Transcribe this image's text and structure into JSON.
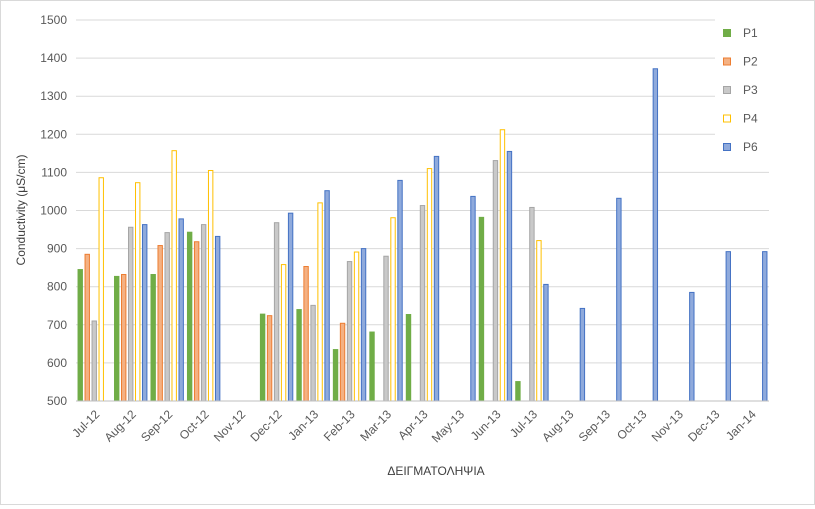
{
  "chart_data": {
    "type": "bar",
    "title": "",
    "xlabel": "ΔΕΙΓΜΑΤΟΛΗΨΙΑ",
    "ylabel": "Conductivity (μS/cm)",
    "ylim": [
      500,
      1500
    ],
    "yticks": [
      500,
      600,
      700,
      800,
      900,
      1000,
      1100,
      1200,
      1300,
      1400,
      1500
    ],
    "grid": true,
    "legend_position": "right",
    "categories": [
      "Jul-12",
      "Aug-12",
      "Sep-12",
      "Oct-12",
      "Nov-12",
      "Dec-12",
      "Jan-13",
      "Feb-13",
      "Mar-13",
      "Apr-13",
      "May-13",
      "Jun-13",
      "Jul-13",
      "Aug-13",
      "Sep-13",
      "Oct-13",
      "Nov-13",
      "Dec-13",
      "Jan-14"
    ],
    "series": [
      {
        "name": "P1",
        "color": "#70ad47",
        "stroke": "#70ad47",
        "values": [
          845,
          827,
          832,
          943,
          null,
          728,
          740,
          635,
          681,
          727,
          null,
          982,
          551,
          null,
          null,
          null,
          null,
          null,
          null
        ]
      },
      {
        "name": "P2",
        "color": "#f4b183",
        "stroke": "#ed7d31",
        "values": [
          885,
          832,
          908,
          918,
          null,
          724,
          853,
          704,
          null,
          null,
          null,
          null,
          null,
          null,
          null,
          null,
          null,
          null,
          null
        ]
      },
      {
        "name": "P3",
        "color": "#c9c9c9",
        "stroke": "#a5a5a5",
        "values": [
          710,
          956,
          942,
          963,
          null,
          968,
          751,
          866,
          880,
          1013,
          null,
          1131,
          1008,
          null,
          null,
          null,
          null,
          null,
          null
        ]
      },
      {
        "name": "P4",
        "color": "#ffffff",
        "stroke": "#ffc000",
        "values": [
          1086,
          1073,
          1157,
          1105,
          null,
          858,
          1020,
          891,
          981,
          1110,
          null,
          1212,
          921,
          null,
          null,
          null,
          null,
          null,
          null
        ]
      },
      {
        "name": "P6",
        "color": "#8faadc",
        "stroke": "#4472c4",
        "values": [
          null,
          963,
          978,
          932,
          null,
          993,
          1052,
          900,
          1079,
          1142,
          1037,
          1155,
          806,
          743,
          1032,
          1372,
          785,
          892,
          892
        ]
      }
    ]
  }
}
